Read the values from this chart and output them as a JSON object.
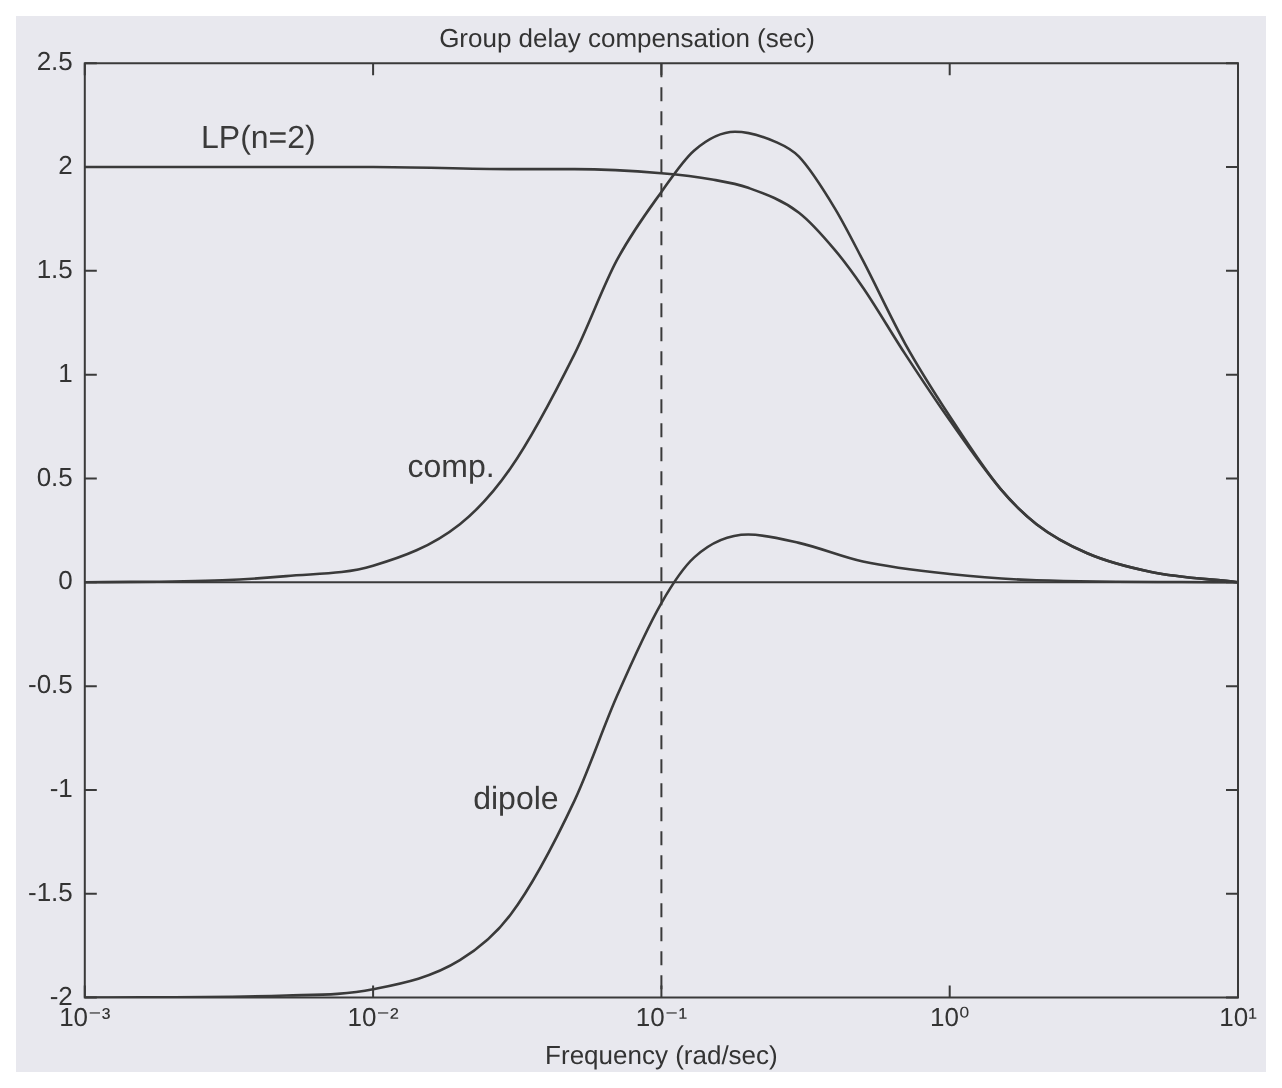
{
  "chart_data": {
    "type": "line",
    "title": "Group delay compensation (sec)",
    "xlabel": "Frequency (rad/sec)",
    "log": "x",
    "grid": false,
    "legend": false,
    "marker": "none",
    "line_style": "solid",
    "xlim": [
      0.001,
      10
    ],
    "xticks": [
      {
        "value": 0.001,
        "label": "10⁻³"
      },
      {
        "value": 0.01,
        "label": "10⁻²"
      },
      {
        "value": 0.1,
        "label": "10⁻¹"
      },
      {
        "value": 1,
        "label": "10⁰"
      },
      {
        "value": 10,
        "label": "10¹"
      }
    ],
    "ylim": [
      -2,
      2.5
    ],
    "yticks": [
      -2,
      -1.5,
      -1,
      -0.5,
      0,
      0.5,
      1,
      1.5,
      2,
      2.5
    ],
    "ref_lines": [
      {
        "axis": "y",
        "value": 0,
        "color": "#3a3a3a",
        "line_style": "solid"
      },
      {
        "axis": "x",
        "value": 0.1,
        "color": "#3a3a3a",
        "line_style": "dashed"
      }
    ],
    "series": [
      {
        "name": "LP(n=2)",
        "color": "#3a3a3a",
        "x": [
          0.001,
          0.004,
          0.01,
          0.03,
          0.05,
          0.1,
          0.15,
          0.2,
          0.3,
          0.4,
          0.5,
          0.7,
          1,
          1.5,
          2,
          3,
          5,
          10
        ],
        "values": [
          2,
          2,
          2,
          1.99,
          1.99,
          1.97,
          1.94,
          1.9,
          1.78,
          1.6,
          1.42,
          1.1,
          0.78,
          0.45,
          0.28,
          0.14,
          0.05,
          0
        ]
      },
      {
        "name": "comp.",
        "color": "#3a3a3a",
        "x": [
          0.001,
          0.003,
          0.005,
          0.01,
          0.02,
          0.03,
          0.05,
          0.07,
          0.1,
          0.13,
          0.18,
          0.25,
          0.3,
          0.4,
          0.5,
          0.7,
          1,
          1.5,
          2,
          3,
          5,
          10
        ],
        "values": [
          0,
          0.01,
          0.03,
          0.08,
          0.28,
          0.55,
          1.1,
          1.55,
          1.88,
          2.08,
          2.17,
          2.12,
          2.05,
          1.8,
          1.55,
          1.15,
          0.8,
          0.45,
          0.28,
          0.14,
          0.05,
          0
        ]
      },
      {
        "name": "dipole",
        "color": "#3a3a3a",
        "x": [
          0.001,
          0.005,
          0.01,
          0.02,
          0.03,
          0.05,
          0.07,
          0.1,
          0.13,
          0.2,
          0.3,
          0.5,
          1,
          2,
          10
        ],
        "values": [
          -2,
          -1.99,
          -1.96,
          -1.82,
          -1.6,
          -1.05,
          -0.55,
          -0.1,
          0.12,
          0.23,
          0.19,
          0.1,
          0.04,
          0.01,
          0
        ]
      }
    ]
  }
}
